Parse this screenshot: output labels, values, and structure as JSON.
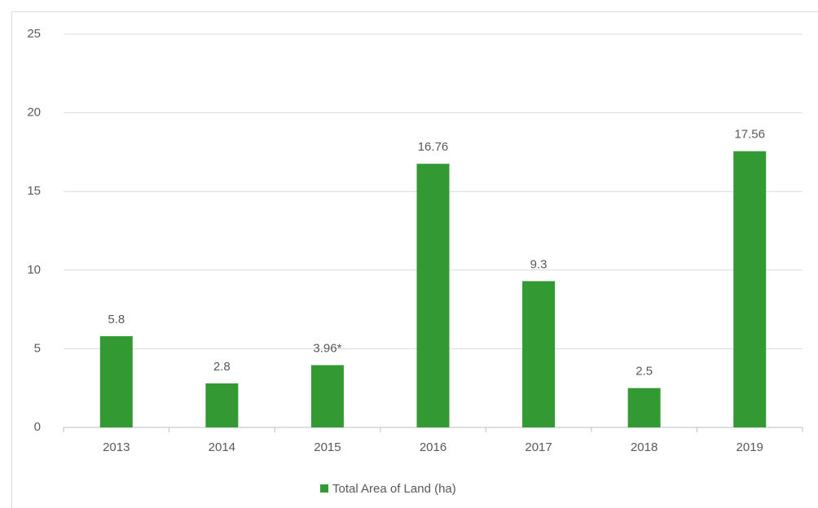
{
  "chart_data": {
    "type": "bar",
    "categories": [
      "2013",
      "2014",
      "2015",
      "2016",
      "2017",
      "2018",
      "2019"
    ],
    "series": [
      {
        "name": "Total Area of Land (ha)",
        "color": "#339933",
        "values": [
          5.8,
          2.8,
          3.96,
          16.76,
          9.3,
          2.5,
          17.56
        ],
        "value_labels": [
          "5.8",
          "2.8",
          "3.96*",
          "16.76",
          "9.3",
          "2.5",
          "17.56"
        ]
      }
    ],
    "ylim": [
      0,
      25
    ],
    "yticks": [
      0,
      5,
      10,
      15,
      20,
      25
    ],
    "grid": true,
    "legend": "bottom"
  }
}
